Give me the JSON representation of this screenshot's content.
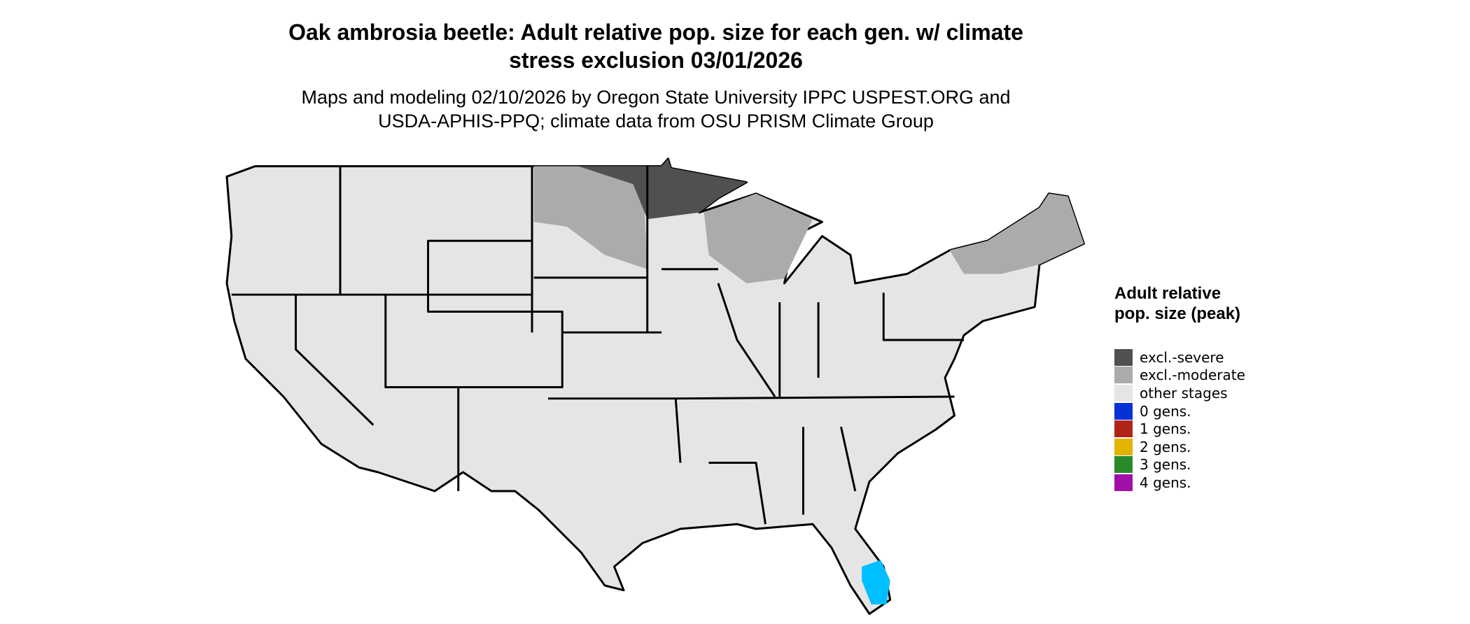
{
  "title": "Oak ambrosia beetle: Adult relative pop. size for each gen. w/ climate stress exclusion 03/01/2026",
  "subtitle": "Maps and modeling 02/10/2026 by Oregon State University IPPC USPEST.ORG and USDA-APHIS-PPQ; climate data from OSU PRISM Climate Group",
  "legend": {
    "title": "Adult relative pop. size (peak)",
    "items": [
      {
        "label": "excl.-severe",
        "color": "#505050"
      },
      {
        "label": "excl.-moderate",
        "color": "#ababab"
      },
      {
        "label": "other stages",
        "color": "#e5e5e5"
      },
      {
        "label": "0 gens.",
        "color": "#0432d6"
      },
      {
        "label": "1 gens.",
        "color": "#b02418"
      },
      {
        "label": "2 gens.",
        "color": "#e0b400"
      },
      {
        "label": "3 gens.",
        "color": "#2a8a2a"
      },
      {
        "label": "4 gens.",
        "color": "#a010a8"
      }
    ]
  }
}
